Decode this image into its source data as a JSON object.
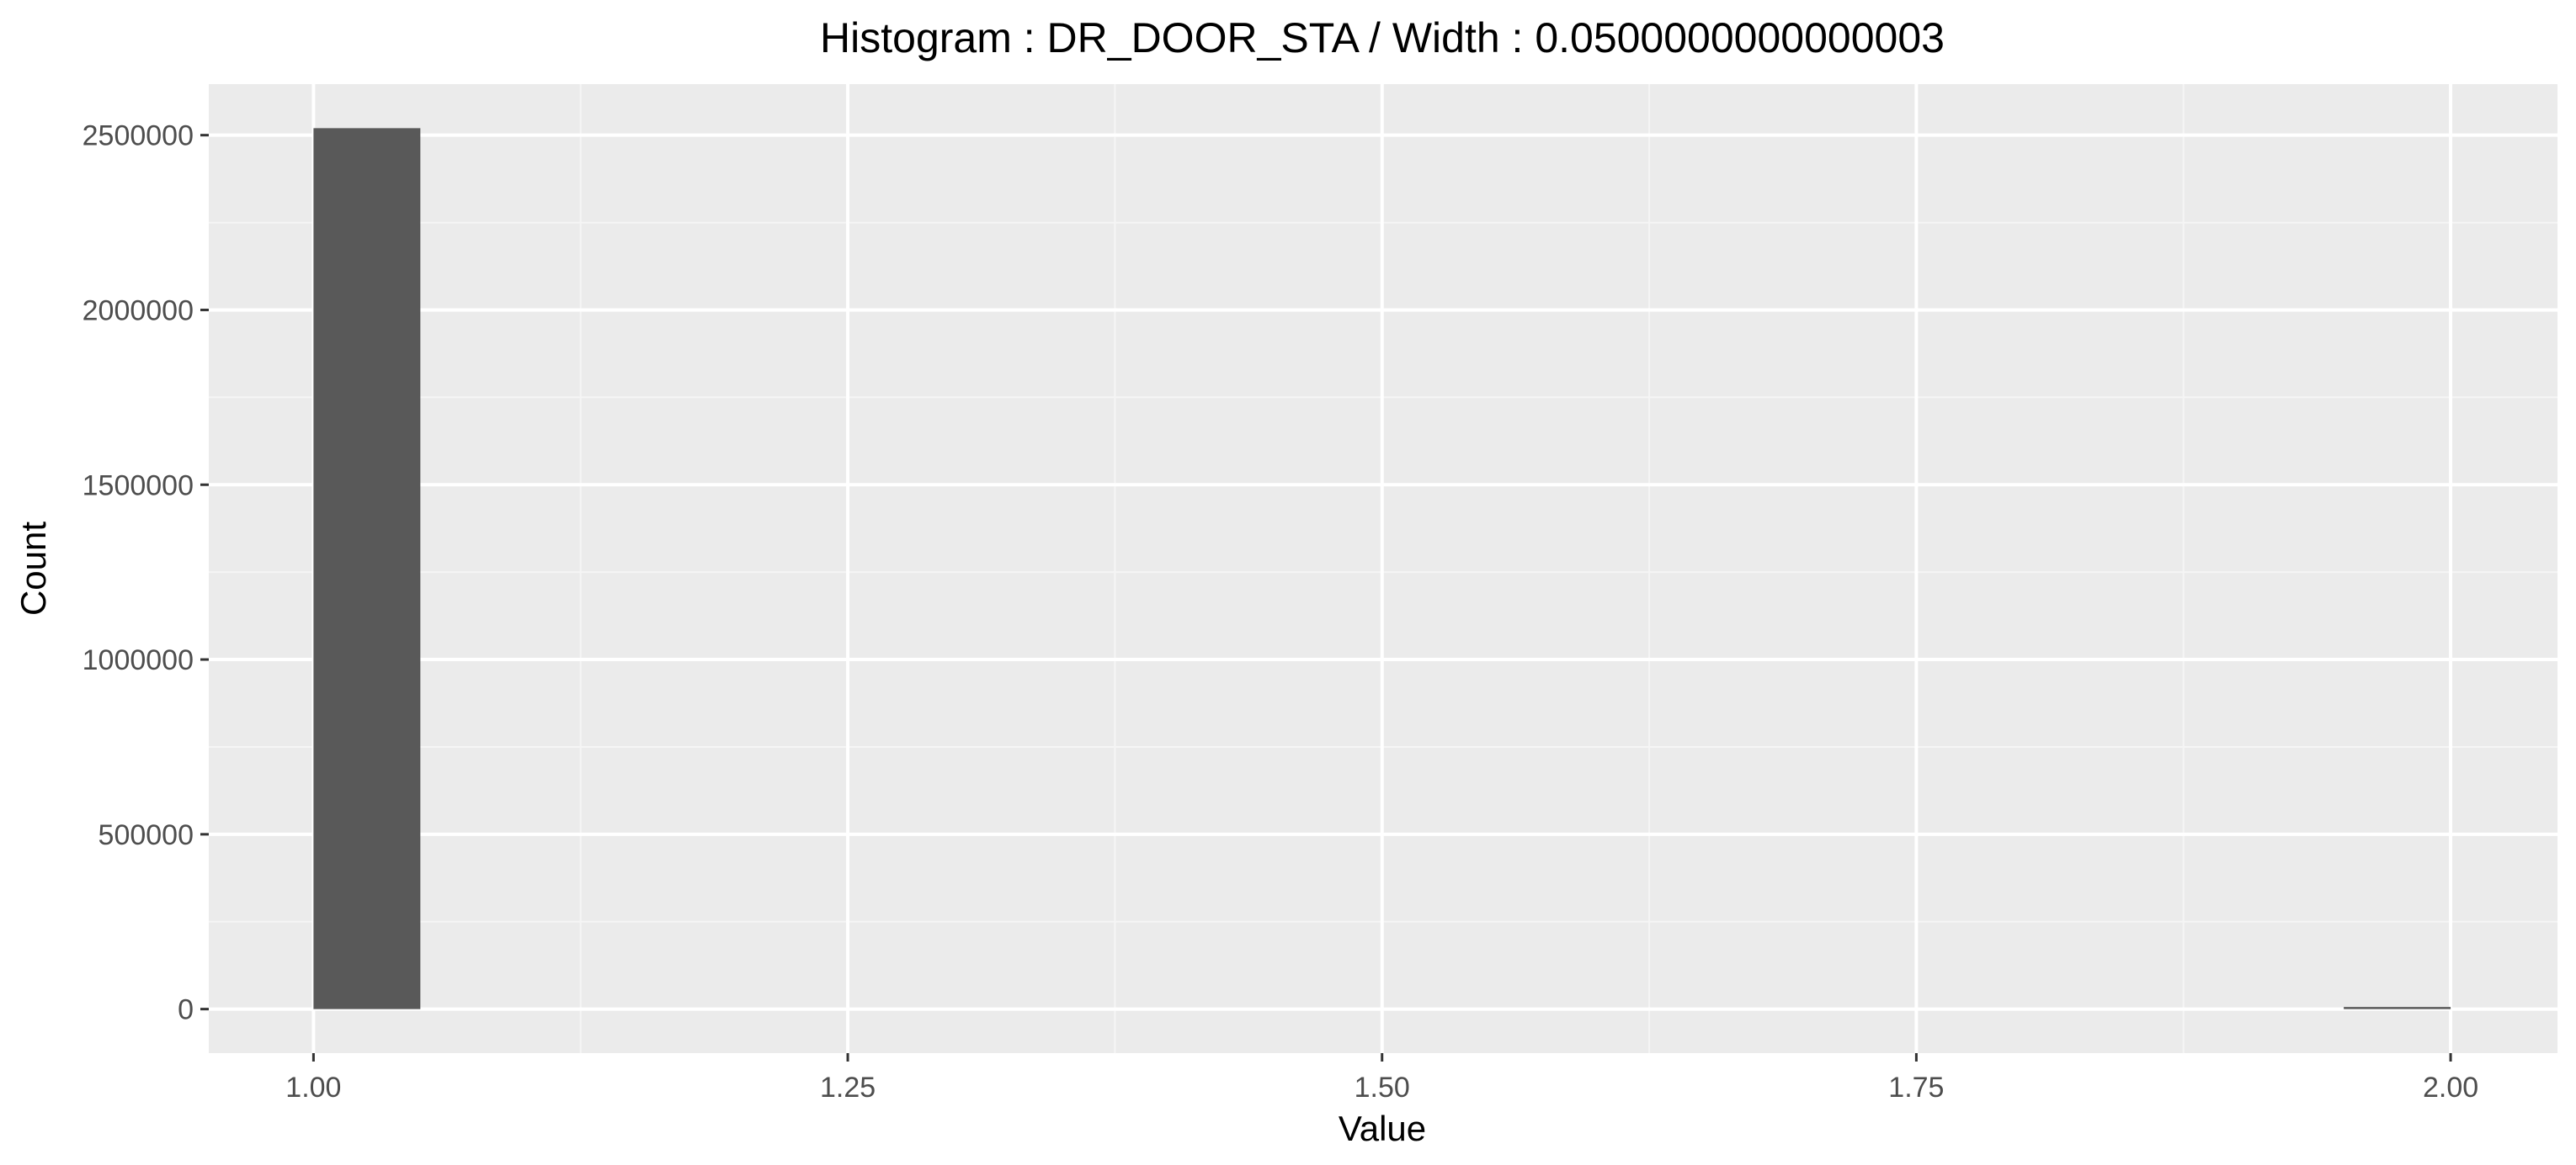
{
  "chart_data": {
    "type": "bar",
    "title": "Histogram : DR_DOOR_STA / Width : 0.0500000000000003",
    "xlabel": "Value",
    "ylabel": "Count",
    "bin_width": 0.05,
    "bins": [
      {
        "x0": 1.0,
        "x1": 1.05,
        "count": 2520000
      },
      {
        "x0": 1.95,
        "x1": 2.0,
        "count": 6000
      }
    ],
    "xlim": [
      0.951,
      2.05
    ],
    "ylim": [
      -126000,
      2646000
    ],
    "x_ticks": [
      1.0,
      1.25,
      1.5,
      1.75,
      2.0
    ],
    "x_tick_labels": [
      "1.00",
      "1.25",
      "1.50",
      "1.75",
      "2.00"
    ],
    "y_ticks": [
      0,
      500000,
      1000000,
      1500000,
      2000000,
      2500000
    ],
    "y_tick_labels": [
      "0",
      "500000",
      "1000000",
      "1500000",
      "2000000",
      "2500000"
    ],
    "grid": true,
    "legend": "none",
    "colors": {
      "bar_fill": "#595959",
      "panel_background": "#ebebeb",
      "grid_major": "#ffffff",
      "grid_minor": "#f5f5f5"
    }
  }
}
